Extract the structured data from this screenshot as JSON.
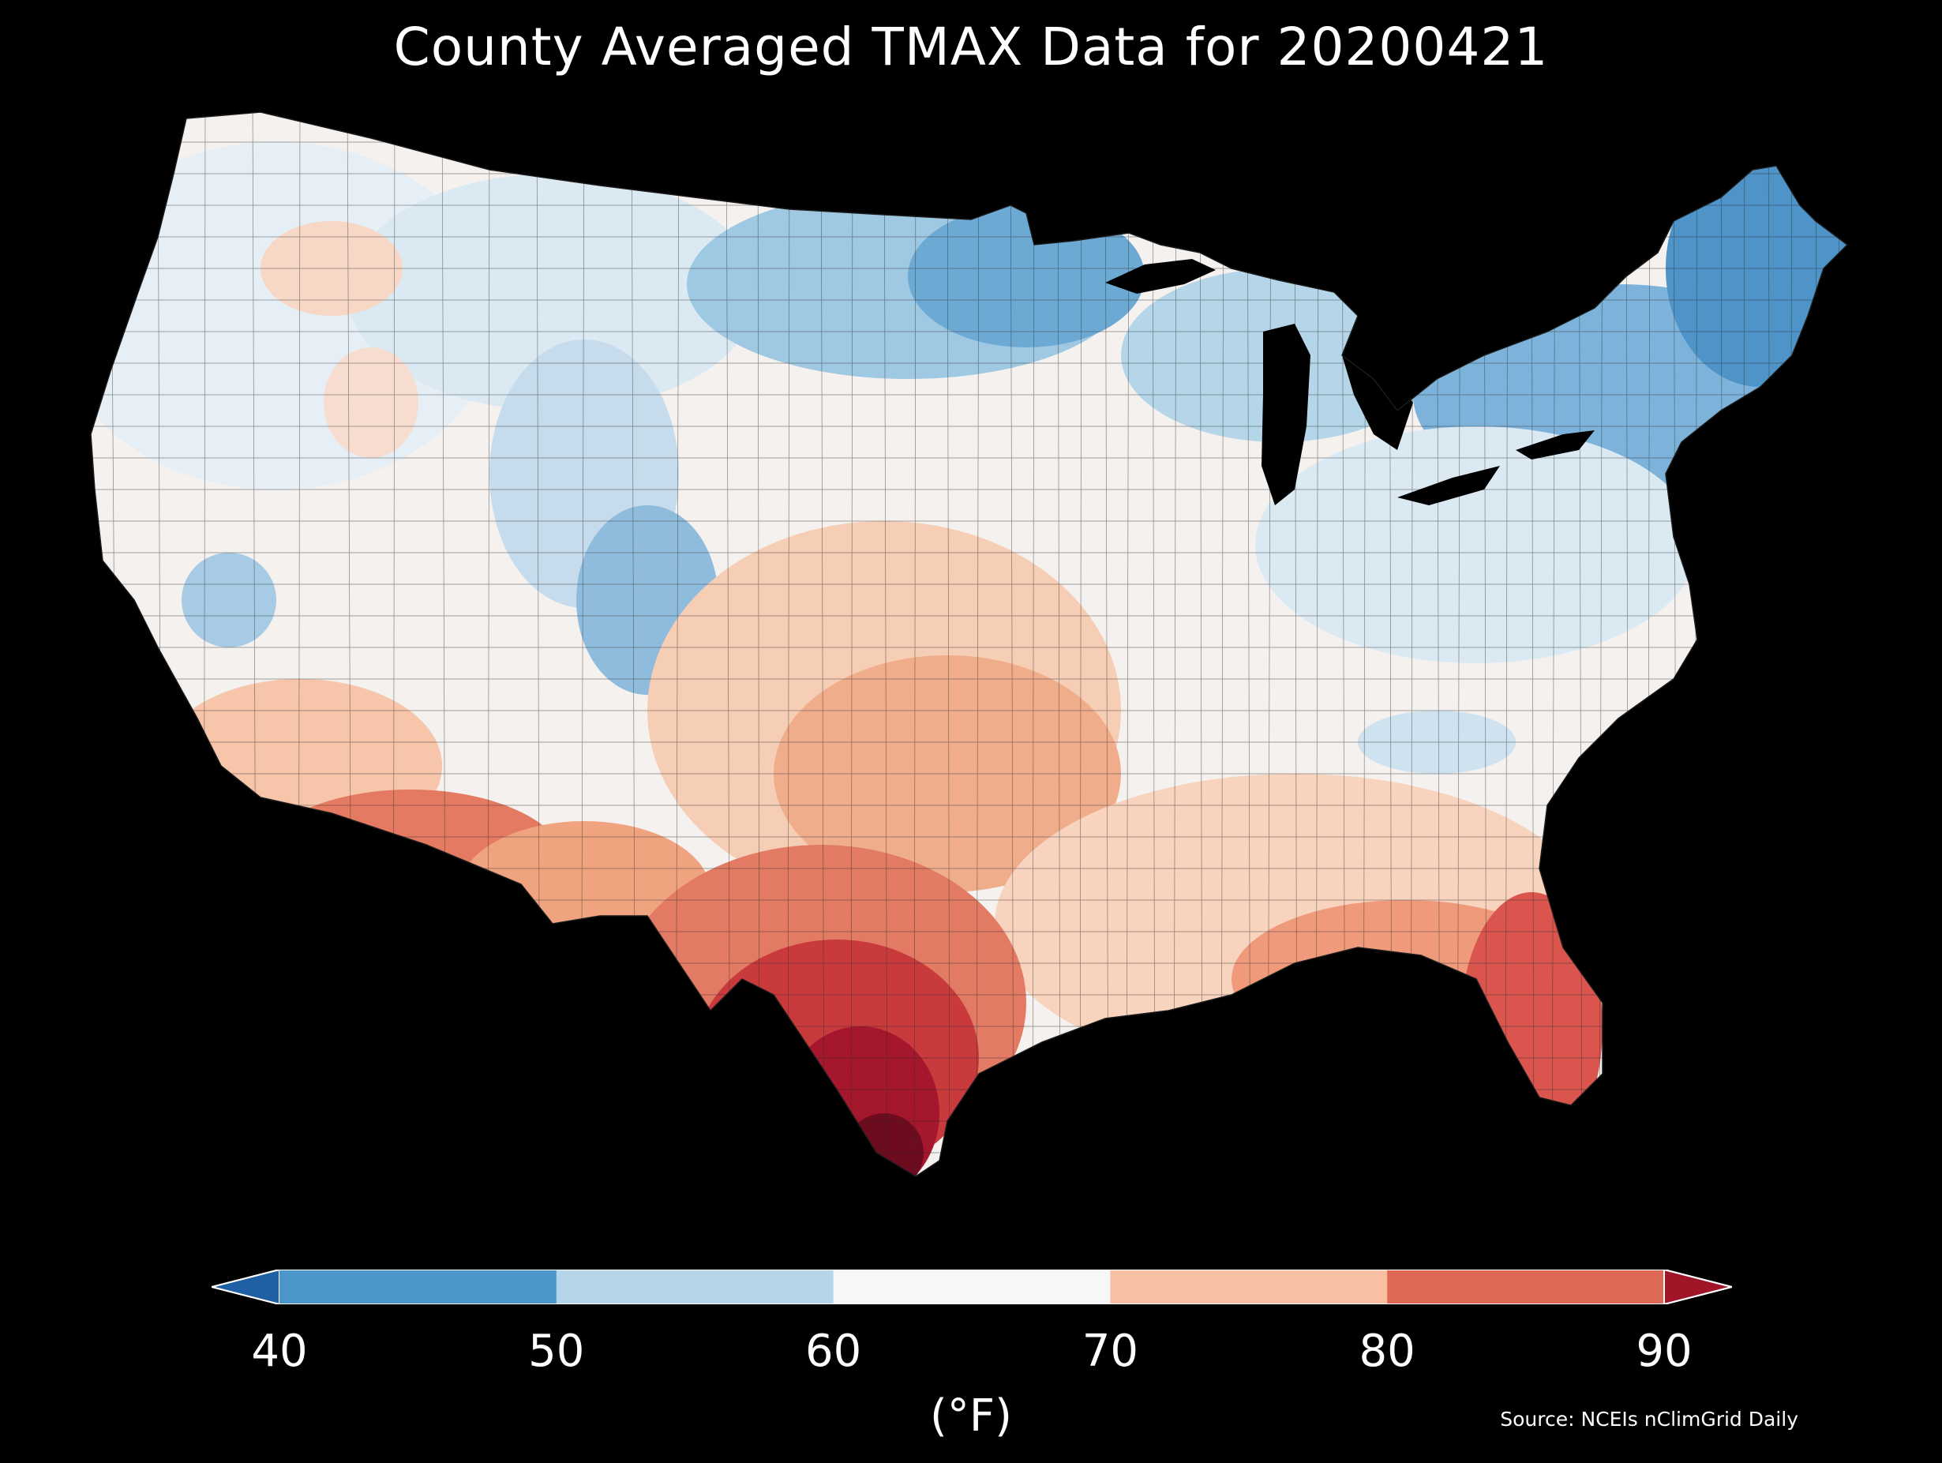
{
  "title": "County Averaged TMAX Data for 20200421",
  "colorbar": {
    "ticks": [
      "40",
      "50",
      "60",
      "70",
      "80",
      "90"
    ],
    "unit": "(°F)",
    "bins": [
      {
        "range": [
          40,
          50
        ],
        "color": "#4b97c9"
      },
      {
        "range": [
          50,
          60
        ],
        "color": "#b5d6e8"
      },
      {
        "range": [
          60,
          70
        ],
        "color": "#f7f7f7"
      },
      {
        "range": [
          70,
          80
        ],
        "color": "#f8c0a2"
      },
      {
        "range": [
          80,
          90
        ],
        "color": "#de6a55"
      }
    ],
    "extend_low_color": "#1f5fa3",
    "extend_high_color": "#a11528"
  },
  "source": "Source: NCEIs nClimGrid Daily",
  "map": {
    "region": "Contiguous United States",
    "variable": "TMAX",
    "date": "20200421",
    "palette": {
      "cold": "#3d86c2",
      "cool": "#9fc8e2",
      "mild": "#dbe9f3",
      "neutral": "#f4f1ef",
      "warm": "#f6cdb5",
      "warmer": "#f0a37f",
      "hot": "#e0705a",
      "hotter": "#c93a3c",
      "hottest": "#8e0f26"
    }
  }
}
